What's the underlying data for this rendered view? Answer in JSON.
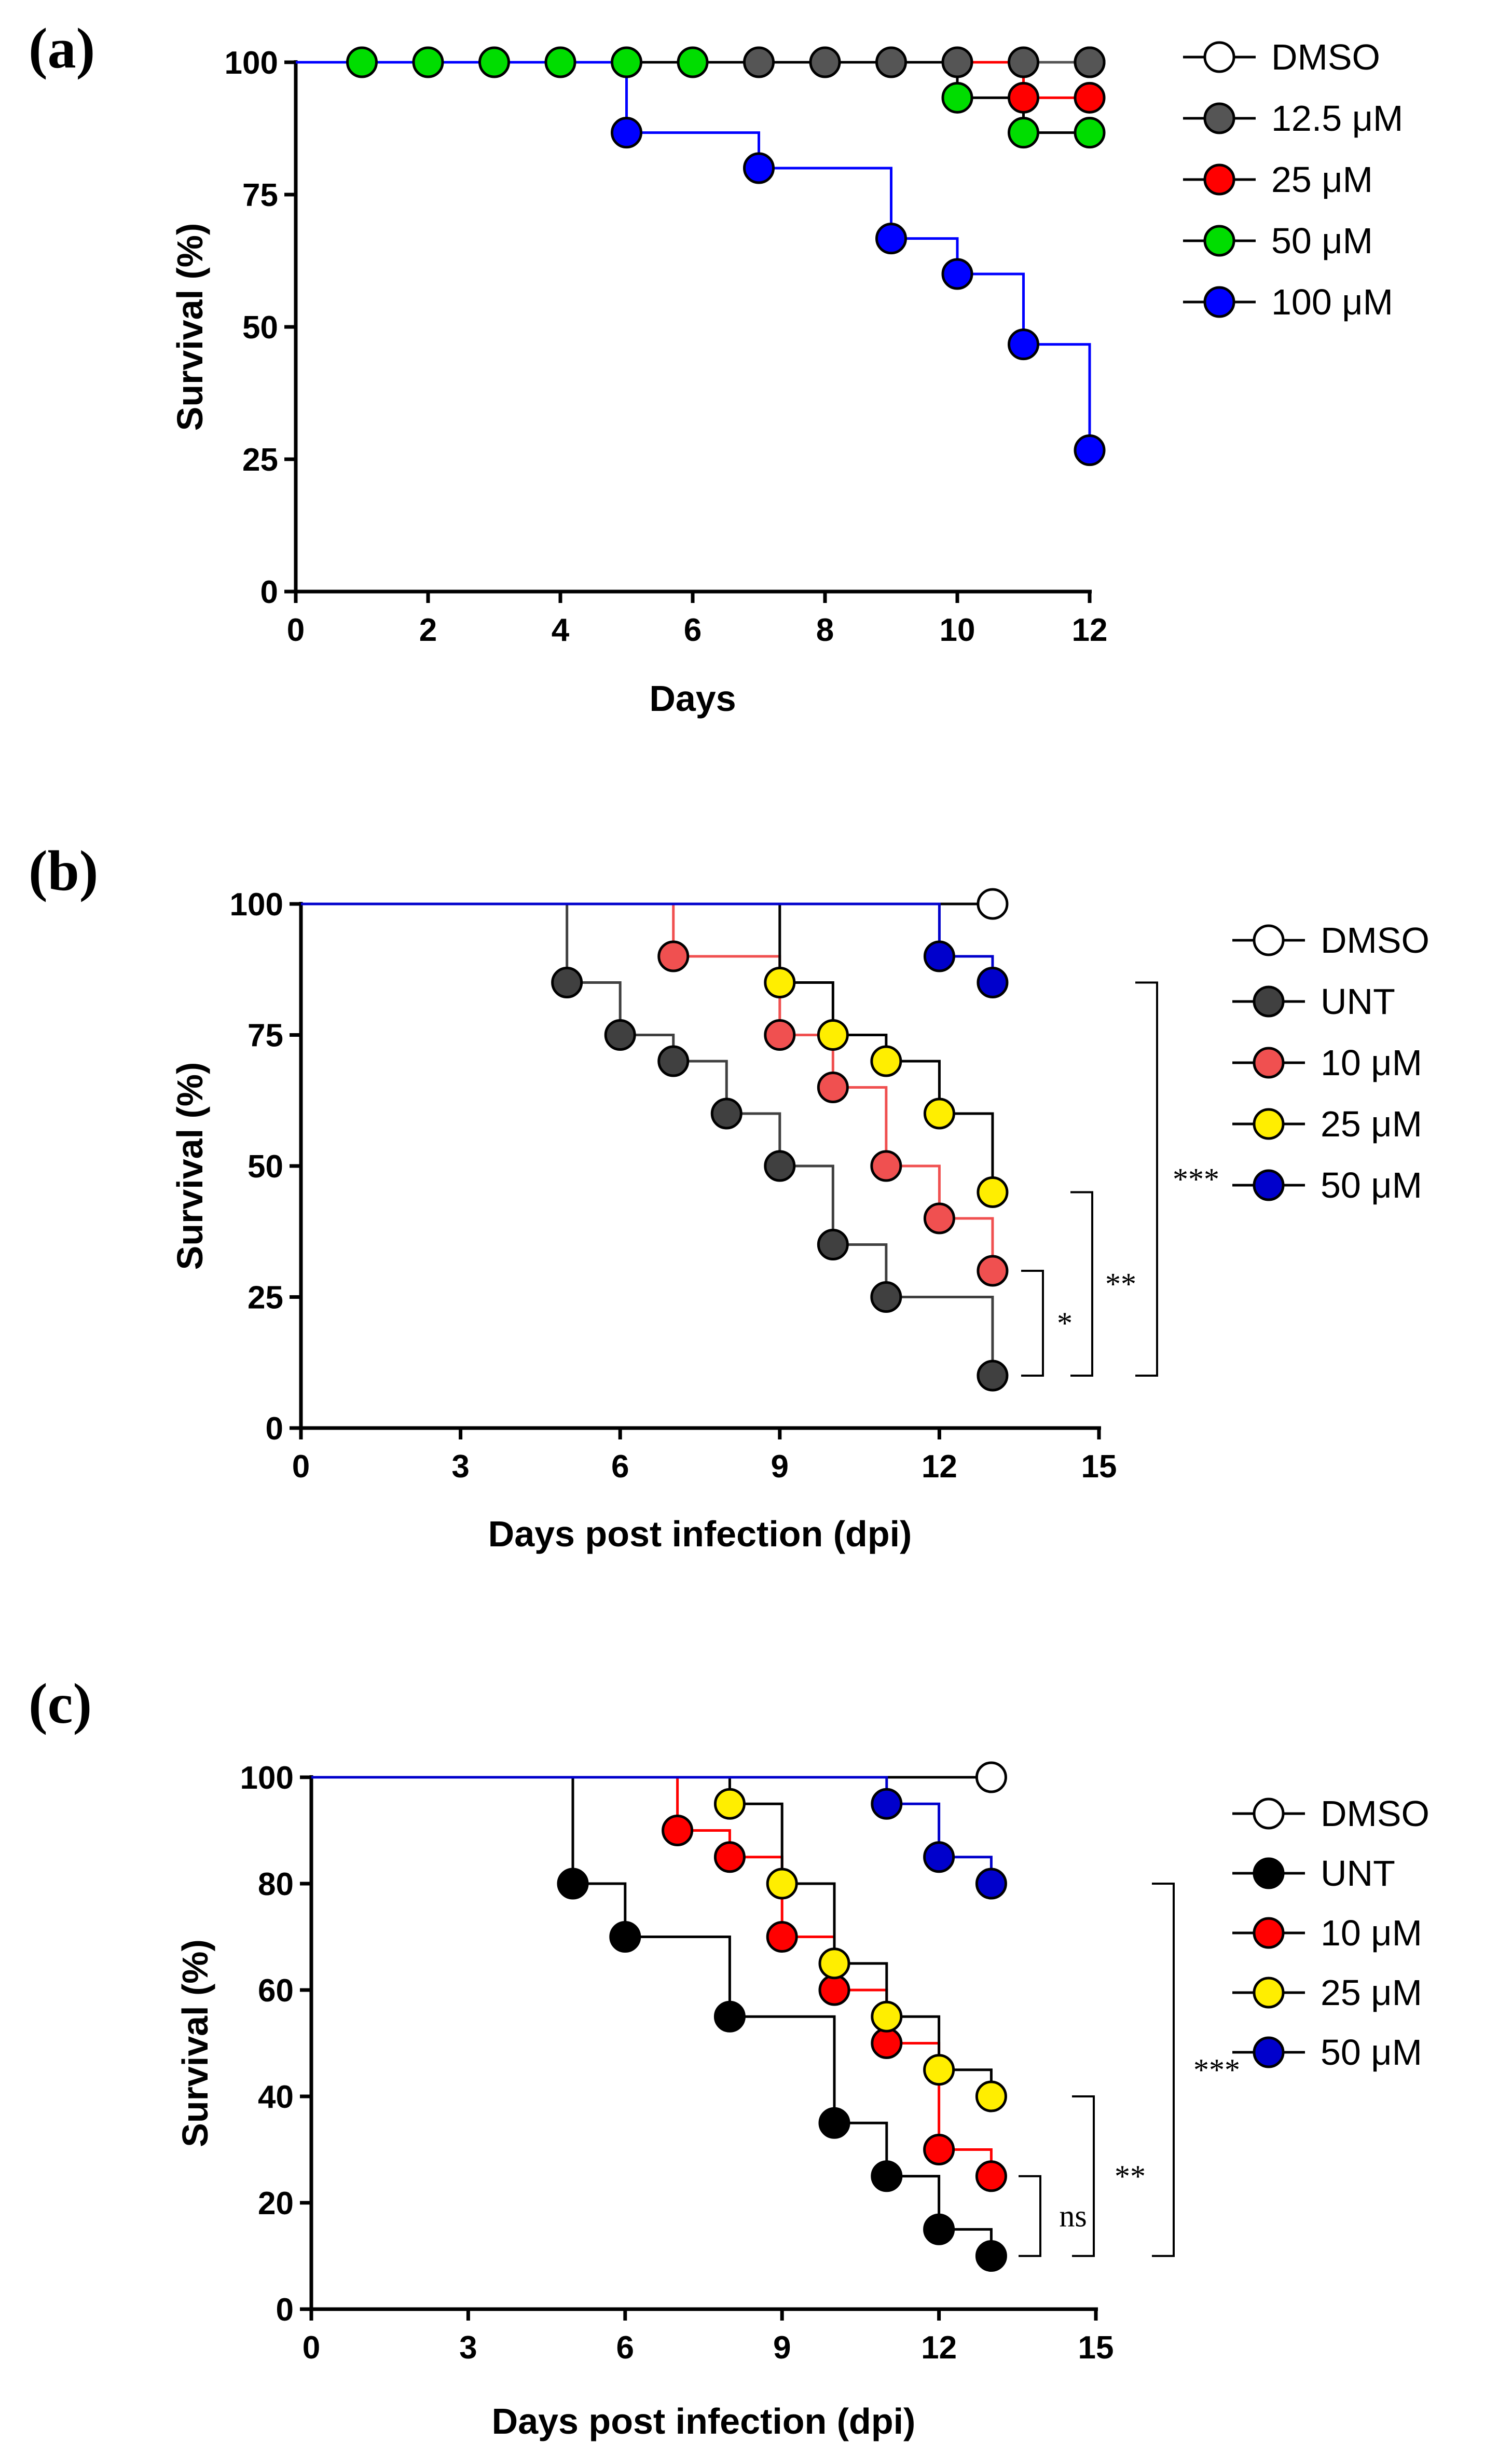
{
  "chart_data": [
    {
      "type": "line",
      "subtype": "kaplan-meier survival",
      "panel": "(a)",
      "xlabel": "Days",
      "ylabel": "Survival (%)",
      "xlim": [
        0,
        12
      ],
      "ylim": [
        0,
        100
      ],
      "xticks": [
        0,
        2,
        4,
        6,
        8,
        10,
        12
      ],
      "yticks": [
        0,
        25,
        50,
        75,
        100
      ],
      "series": [
        {
          "name": "DMSO",
          "color": "#ffffff",
          "x": [
            1,
            2,
            3,
            4,
            5,
            6,
            7,
            8,
            9,
            10,
            11,
            12
          ],
          "y": [
            100,
            100,
            100,
            100,
            100,
            100,
            100,
            100,
            100,
            100,
            100,
            100
          ],
          "markers": [
            12
          ]
        },
        {
          "name": "12.5 μM",
          "color": "#555555",
          "x": [
            0,
            12
          ],
          "y": [
            100,
            100
          ],
          "markers": [
            7,
            8,
            9,
            10,
            11,
            12
          ]
        },
        {
          "name": "25 μM",
          "color": "#ff0000",
          "x": [
            0,
            11,
            12
          ],
          "y": [
            100,
            93.3,
            93.3
          ],
          "markers": [
            11,
            12
          ]
        },
        {
          "name": "50 μM",
          "color": "#00dd00",
          "x": [
            0,
            10,
            11,
            12
          ],
          "y": [
            100,
            93.3,
            86.7,
            86.7
          ],
          "markers": [
            1,
            2,
            3,
            4,
            5,
            6,
            10,
            11,
            12
          ]
        },
        {
          "name": "100 μM",
          "color": "#0000ff",
          "x": [
            0,
            5,
            7,
            9,
            10,
            11,
            12
          ],
          "y": [
            100,
            86.7,
            80,
            66.7,
            60,
            46.7,
            26.7
          ],
          "markers": [
            5,
            7,
            9,
            10,
            11,
            12
          ]
        }
      ],
      "significance": []
    },
    {
      "type": "line",
      "subtype": "kaplan-meier survival",
      "panel": "(b)",
      "xlabel": "Days post infection (dpi)",
      "ylabel": "Survival (%)",
      "xlim": [
        0,
        15
      ],
      "ylim": [
        0,
        100
      ],
      "xticks": [
        0,
        3,
        6,
        9,
        12,
        15
      ],
      "yticks": [
        0,
        25,
        50,
        75,
        100
      ],
      "series": [
        {
          "name": "DMSO",
          "color": "#ffffff",
          "x": [
            0,
            13
          ],
          "y": [
            100,
            100
          ],
          "markers": [
            13
          ]
        },
        {
          "name": "UNT",
          "color": "#404040",
          "x": [
            0,
            5,
            6,
            7,
            8,
            9,
            10,
            11,
            13
          ],
          "y": [
            100,
            85,
            75,
            70,
            60,
            50,
            35,
            25,
            10
          ],
          "markers": [
            5,
            6,
            7,
            8,
            9,
            10,
            11,
            13
          ]
        },
        {
          "name": "10 μM",
          "color": "#f05050",
          "x": [
            0,
            7,
            9,
            10,
            11,
            12,
            13
          ],
          "y": [
            100,
            90,
            75,
            65,
            50,
            40,
            30
          ],
          "markers": [
            7,
            9,
            10,
            11,
            12,
            13
          ]
        },
        {
          "name": "25 μM",
          "color": "#ffee00",
          "x": [
            0,
            9,
            10,
            11,
            12,
            13
          ],
          "y": [
            100,
            85,
            75,
            70,
            60,
            45
          ],
          "markers": [
            9,
            10,
            11,
            12,
            13
          ]
        },
        {
          "name": "50 μM",
          "color": "#0000cc",
          "x": [
            0,
            12,
            13
          ],
          "y": [
            100,
            90,
            85
          ],
          "markers": [
            12,
            13
          ]
        }
      ],
      "significance": [
        {
          "label": "*",
          "from": 30,
          "to": 10
        },
        {
          "label": "**",
          "from": 45,
          "to": 10
        },
        {
          "label": "***",
          "from": 85,
          "to": 10
        }
      ]
    },
    {
      "type": "line",
      "subtype": "kaplan-meier survival",
      "panel": "(c)",
      "xlabel": "Days post infection (dpi)",
      "ylabel": "Survival (%)",
      "xlim": [
        0,
        15
      ],
      "ylim": [
        0,
        100
      ],
      "xticks": [
        0,
        3,
        6,
        9,
        12,
        15
      ],
      "yticks": [
        0,
        20,
        40,
        60,
        80,
        100
      ],
      "series": [
        {
          "name": "DMSO",
          "color": "#ffffff",
          "x": [
            0,
            13
          ],
          "y": [
            100,
            100
          ],
          "markers": [
            13
          ]
        },
        {
          "name": "UNT",
          "color": "#000000",
          "x": [
            0,
            5,
            6,
            8,
            10,
            11,
            12,
            13
          ],
          "y": [
            100,
            80,
            70,
            55,
            35,
            25,
            15,
            10
          ],
          "markers": [
            5,
            6,
            8,
            10,
            11,
            12,
            13
          ]
        },
        {
          "name": "10 μM",
          "color": "#ff0000",
          "x": [
            0,
            7,
            8,
            9,
            10,
            11,
            12,
            13
          ],
          "y": [
            100,
            90,
            85,
            70,
            60,
            50,
            30,
            25
          ],
          "markers": [
            7,
            8,
            9,
            10,
            11,
            12,
            13
          ]
        },
        {
          "name": "25 μM",
          "color": "#ffee00",
          "x": [
            0,
            8,
            9,
            10,
            11,
            12,
            13
          ],
          "y": [
            100,
            95,
            80,
            65,
            55,
            45,
            40
          ],
          "markers": [
            8,
            9,
            10,
            11,
            12,
            13
          ]
        },
        {
          "name": "50 μM",
          "color": "#0000cc",
          "x": [
            0,
            11,
            12,
            13
          ],
          "y": [
            100,
            95,
            85,
            80
          ],
          "markers": [
            11,
            12,
            13
          ]
        }
      ],
      "significance": [
        {
          "label": "ns",
          "from": 25,
          "to": 10
        },
        {
          "label": "**",
          "from": 40,
          "to": 10
        },
        {
          "label": "***",
          "from": 80,
          "to": 10
        }
      ]
    }
  ]
}
